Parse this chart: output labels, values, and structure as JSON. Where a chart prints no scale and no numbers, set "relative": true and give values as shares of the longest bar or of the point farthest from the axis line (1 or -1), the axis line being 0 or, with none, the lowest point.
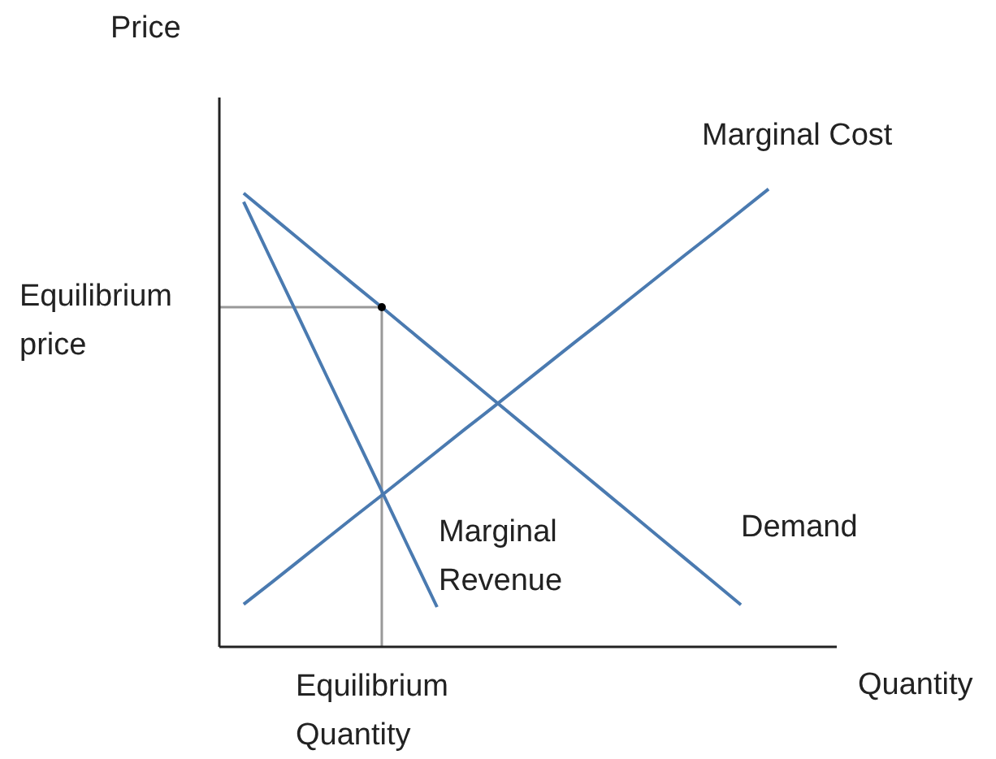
{
  "chart_data": {
    "type": "line",
    "relative": true,
    "xlabel": "Quantity",
    "ylabel": "Price",
    "marker": "none",
    "line_style": "solid",
    "categories": [
      null,
      null,
      null,
      null,
      null,
      null,
      null,
      null,
      null,
      null,
      null,
      null,
      null,
      null,
      null,
      null,
      null,
      null,
      null,
      null
    ],
    "series": [
      {
        "name": "Demand",
        "color": "#4a7ab0",
        "values": [
          0.991,
          0.941,
          0.891,
          0.841,
          0.791,
          0.742,
          0.692,
          0.642,
          0.592,
          0.542,
          0.492,
          0.442,
          0.392,
          0.342,
          0.292,
          0.242,
          0.192,
          0.142,
          0.092,
          null
        ]
      },
      {
        "name": "Marginal Revenue",
        "color": "#4a7ab0",
        "values": [
          0.972,
          0.845,
          0.719,
          0.592,
          0.466,
          0.34,
          0.213,
          0.087,
          null,
          null,
          null,
          null,
          null,
          null,
          null,
          null,
          null,
          null,
          null,
          null
        ]
      },
      {
        "name": "Marginal Cost",
        "color": "#4a7ab0",
        "values": [
          0.093,
          0.14,
          0.188,
          0.236,
          0.284,
          0.331,
          0.379,
          0.427,
          0.475,
          0.522,
          0.57,
          0.618,
          0.666,
          0.713,
          0.761,
          0.809,
          0.857,
          0.904,
          0.952,
          1.0
        ]
      }
    ],
    "ref_lines": [
      {
        "axis": "y",
        "value": 0.742,
        "label": "Equilibrium price",
        "color": "#999999"
      },
      {
        "axis": "x",
        "label": "Equilibrium Quantity",
        "color": "#999999"
      }
    ]
  }
}
